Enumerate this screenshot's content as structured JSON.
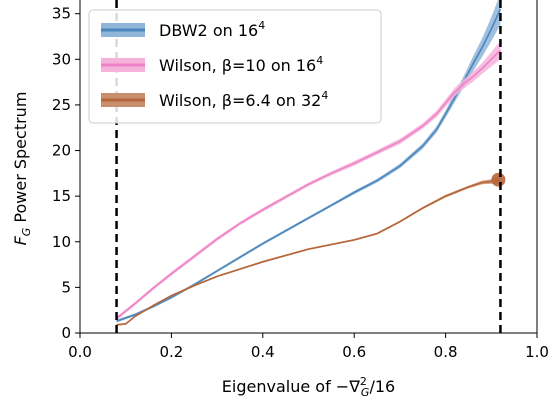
{
  "chart_data": {
    "type": "line",
    "xlabel": "Eigenvalue of −∇²_G/16",
    "ylabel": "F_G Power Spectrum",
    "xlim": [
      0.0,
      1.0
    ],
    "ylim": [
      0,
      36.5
    ],
    "xticks": [
      "0.0",
      "0.2",
      "0.4",
      "0.6",
      "0.8",
      "1.0"
    ],
    "yticks": [
      "0",
      "5",
      "10",
      "15",
      "20",
      "25",
      "30",
      "35"
    ],
    "vlines": [
      0.08,
      0.92
    ],
    "legend_position": "upper-left",
    "series": [
      {
        "name": "DBW2 on 16",
        "name_sup": "4",
        "color": "#4a86bb",
        "band_color": "#8fb5d8",
        "x": [
          0.08,
          0.12,
          0.16,
          0.2,
          0.25,
          0.3,
          0.35,
          0.4,
          0.45,
          0.5,
          0.55,
          0.6,
          0.65,
          0.7,
          0.75,
          0.78,
          0.8,
          0.82,
          0.84,
          0.86,
          0.88,
          0.9,
          0.92
        ],
        "values": [
          1.3,
          2.0,
          2.9,
          3.9,
          5.3,
          6.8,
          8.3,
          9.8,
          11.2,
          12.6,
          14.0,
          15.4,
          16.7,
          18.3,
          20.5,
          22.3,
          24.0,
          25.8,
          27.6,
          29.5,
          31.3,
          33.3,
          35.5
        ],
        "band": [
          0.15,
          0.15,
          0.15,
          0.15,
          0.15,
          0.15,
          0.15,
          0.15,
          0.15,
          0.15,
          0.15,
          0.2,
          0.2,
          0.25,
          0.3,
          0.35,
          0.4,
          0.5,
          0.6,
          0.8,
          1.0,
          1.3,
          1.7
        ]
      },
      {
        "name": "Wilson, β=10 on 16",
        "name_sup": "4",
        "color": "#ee82c6",
        "band_color": "#f5b3dc",
        "x": [
          0.08,
          0.12,
          0.16,
          0.2,
          0.25,
          0.3,
          0.35,
          0.4,
          0.45,
          0.5,
          0.55,
          0.6,
          0.65,
          0.7,
          0.75,
          0.78,
          0.8,
          0.82,
          0.84,
          0.86,
          0.88,
          0.9,
          0.92
        ],
        "values": [
          1.6,
          3.2,
          4.9,
          6.5,
          8.4,
          10.3,
          12.0,
          13.5,
          14.9,
          16.3,
          17.5,
          18.6,
          19.8,
          21.0,
          22.7,
          24.0,
          25.2,
          26.4,
          27.3,
          28.1,
          29.0,
          30.0,
          31.0
        ],
        "band": [
          0.2,
          0.2,
          0.2,
          0.2,
          0.2,
          0.2,
          0.2,
          0.2,
          0.2,
          0.2,
          0.2,
          0.25,
          0.25,
          0.3,
          0.3,
          0.35,
          0.4,
          0.45,
          0.5,
          0.55,
          0.6,
          0.8,
          1.0
        ]
      },
      {
        "name": "Wilson, β=6.4 on 32",
        "name_sup": "4",
        "color": "#b5663a",
        "band_color": "#c98e6c",
        "x": [
          0.08,
          0.1,
          0.12,
          0.16,
          0.2,
          0.25,
          0.3,
          0.35,
          0.4,
          0.45,
          0.5,
          0.55,
          0.6,
          0.65,
          0.7,
          0.75,
          0.8,
          0.85,
          0.88,
          0.9,
          0.91,
          0.92
        ],
        "values": [
          0.9,
          1.0,
          1.8,
          3.0,
          4.1,
          5.2,
          6.2,
          7.0,
          7.8,
          8.5,
          9.2,
          9.7,
          10.2,
          10.9,
          12.2,
          13.7,
          15.0,
          16.0,
          16.5,
          16.6,
          16.7,
          16.8
        ],
        "band": [
          0.1,
          0.1,
          0.1,
          0.1,
          0.1,
          0.1,
          0.1,
          0.1,
          0.1,
          0.1,
          0.1,
          0.1,
          0.1,
          0.1,
          0.12,
          0.12,
          0.15,
          0.15,
          0.2,
          0.25,
          0.4,
          0.6
        ]
      }
    ]
  }
}
